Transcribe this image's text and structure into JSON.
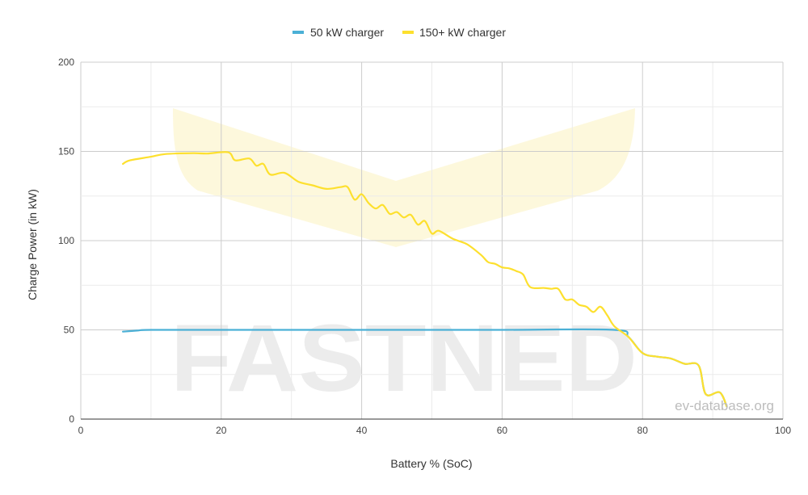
{
  "watermark": {
    "brand_text": "FASTNED",
    "site_text": "ev-database.org"
  },
  "chart_data": {
    "type": "line",
    "title": "",
    "xlabel": "Battery % (SoC)",
    "ylabel": "Charge Power (in kW)",
    "xlim": [
      0,
      100
    ],
    "ylim": [
      0,
      200
    ],
    "x_ticks": [
      0,
      20,
      40,
      60,
      80,
      100
    ],
    "y_ticks": [
      0,
      50,
      100,
      150,
      200
    ],
    "grid": true,
    "legend_position": "top-center",
    "series": [
      {
        "name": "50 kW charger",
        "color": "#4bb0d6",
        "points": [
          [
            6,
            49
          ],
          [
            8,
            49.6
          ],
          [
            10,
            50
          ],
          [
            20,
            50
          ],
          [
            40,
            50
          ],
          [
            60,
            50
          ],
          [
            76,
            50
          ],
          [
            78,
            46
          ],
          [
            80,
            37
          ],
          [
            82,
            35
          ],
          [
            84,
            34
          ],
          [
            86,
            31
          ],
          [
            88,
            30
          ],
          [
            89,
            14
          ],
          [
            91,
            15
          ],
          [
            92,
            7
          ]
        ]
      },
      {
        "name": "150+ kW charger",
        "color": "#fde02e",
        "points": [
          [
            6,
            143
          ],
          [
            7,
            145
          ],
          [
            10,
            147
          ],
          [
            12,
            148.5
          ],
          [
            16,
            149
          ],
          [
            18,
            148.8
          ],
          [
            21,
            149.5
          ],
          [
            22,
            145
          ],
          [
            24,
            146
          ],
          [
            25,
            142
          ],
          [
            26,
            143
          ],
          [
            27,
            137
          ],
          [
            29,
            138
          ],
          [
            31,
            133
          ],
          [
            33,
            131
          ],
          [
            35,
            129
          ],
          [
            37,
            130
          ],
          [
            38,
            130
          ],
          [
            39,
            123
          ],
          [
            40,
            126
          ],
          [
            41,
            121
          ],
          [
            42,
            118
          ],
          [
            43,
            120
          ],
          [
            44,
            115
          ],
          [
            45,
            116
          ],
          [
            46,
            113
          ],
          [
            47,
            114.5
          ],
          [
            48,
            109
          ],
          [
            49,
            111
          ],
          [
            50,
            104
          ],
          [
            51,
            105.5
          ],
          [
            53,
            101
          ],
          [
            55,
            98
          ],
          [
            57,
            92
          ],
          [
            58,
            88
          ],
          [
            59,
            87
          ],
          [
            60,
            85
          ],
          [
            61,
            84.5
          ],
          [
            62,
            83
          ],
          [
            63,
            81
          ],
          [
            64,
            74
          ],
          [
            66,
            73.5
          ],
          [
            67,
            73
          ],
          [
            68,
            73
          ],
          [
            69,
            67
          ],
          [
            70,
            67
          ],
          [
            71,
            64
          ],
          [
            72,
            63
          ],
          [
            73,
            60
          ],
          [
            74,
            63
          ],
          [
            75,
            58
          ],
          [
            76,
            52
          ],
          [
            78,
            46
          ],
          [
            80,
            37
          ],
          [
            82,
            35
          ],
          [
            84,
            34
          ],
          [
            86,
            31
          ],
          [
            88,
            30
          ],
          [
            89,
            14
          ],
          [
            91,
            15
          ],
          [
            92,
            7
          ]
        ]
      }
    ]
  }
}
